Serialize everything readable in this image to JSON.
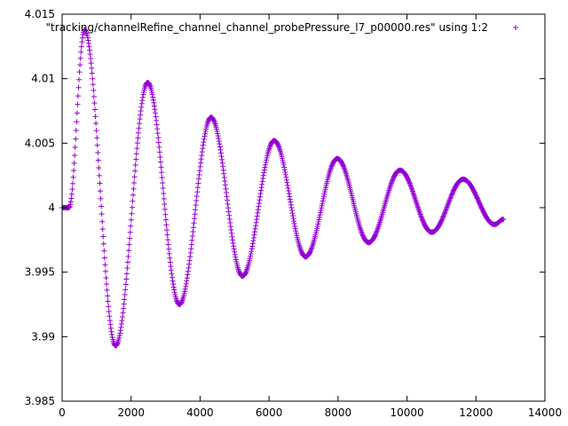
{
  "chart_data": {
    "type": "scatter",
    "title": "",
    "xlabel": "",
    "ylabel": "",
    "xlim": [
      0,
      14000
    ],
    "ylim": [
      3.985,
      4.015
    ],
    "x_ticks": [
      0,
      2000,
      4000,
      6000,
      8000,
      10000,
      12000,
      14000
    ],
    "x_tick_labels": [
      "0",
      "2000",
      "4000",
      "6000",
      "8000",
      "10000",
      "12000",
      "14000"
    ],
    "y_ticks": [
      3.985,
      3.99,
      3.995,
      4.0,
      4.005,
      4.01,
      4.015
    ],
    "y_tick_labels": [
      "3.985",
      "3.99",
      "3.995",
      "4",
      "4.005",
      "4.01",
      "4.015"
    ],
    "grid": false,
    "legend": "top-right",
    "marker": "+",
    "series": [
      {
        "name": "\"tracking/channelRefine_channel_channel_probePressure_l7_p00000.res\" using 1:2",
        "color": "#9400d3",
        "x_start": 0,
        "x_end": 12800,
        "initial_value": 4.0,
        "initial_flat_until": 200,
        "points": [
          [
            0,
            4.0
          ],
          [
            200,
            4.0
          ],
          [
            650,
            4.0138
          ],
          [
            1550,
            3.9893
          ],
          [
            2480,
            4.0097
          ],
          [
            3400,
            3.9925
          ],
          [
            4320,
            4.007
          ],
          [
            5230,
            3.9947
          ],
          [
            6150,
            4.0052
          ],
          [
            7060,
            3.9962
          ],
          [
            7980,
            4.0038
          ],
          [
            8890,
            3.9973
          ],
          [
            9800,
            4.0029
          ],
          [
            10720,
            3.9981
          ],
          [
            11630,
            4.0022
          ],
          [
            12540,
            3.9987
          ],
          [
            12800,
            3.9991
          ]
        ]
      }
    ]
  }
}
